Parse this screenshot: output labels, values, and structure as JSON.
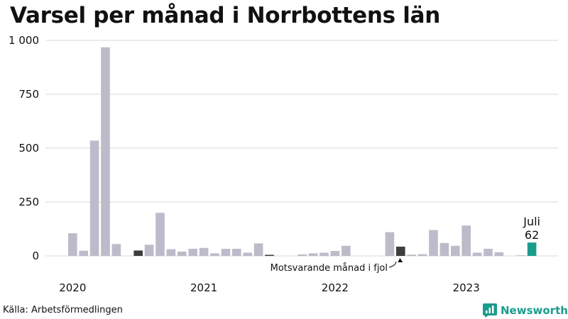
{
  "title": "Varsel per månad i Norrbottens län",
  "source": "Källa: Arbetsförmedlingen",
  "brand": {
    "name": "Newsworthy",
    "icon": "newsworthy-logo-icon"
  },
  "colors": {
    "bar": "#bdbbc9",
    "same_month": "#3d3d3d",
    "current": "#1a9c8c",
    "grid": "#d9d9d9",
    "brand": "#1a9c8c"
  },
  "chart_data": {
    "type": "bar",
    "title": "Varsel per månad i Norrbottens län",
    "xlabel": "",
    "ylabel": "",
    "ylim": [
      0,
      1000
    ],
    "grid": true,
    "yticks": [
      {
        "value": 0,
        "label": "0"
      },
      {
        "value": 250,
        "label": "250"
      },
      {
        "value": 500,
        "label": "500"
      },
      {
        "value": 750,
        "label": "750"
      },
      {
        "value": 1000,
        "label": "1 000"
      }
    ],
    "year_labels": [
      {
        "label": "2020",
        "index": 0
      },
      {
        "label": "2021",
        "index": 12
      },
      {
        "label": "2022",
        "index": 24
      },
      {
        "label": "2023",
        "index": 36
      }
    ],
    "categories": [
      "2020-01",
      "2020-02",
      "2020-03",
      "2020-04",
      "2020-05",
      "2020-06",
      "2020-07",
      "2020-08",
      "2020-09",
      "2020-10",
      "2020-11",
      "2020-12",
      "2021-01",
      "2021-02",
      "2021-03",
      "2021-04",
      "2021-05",
      "2021-06",
      "2021-07",
      "2021-08",
      "2021-09",
      "2021-10",
      "2021-11",
      "2021-12",
      "2022-01",
      "2022-02",
      "2022-03",
      "2022-04",
      "2022-05",
      "2022-06",
      "2022-07",
      "2022-08",
      "2022-09",
      "2022-10",
      "2022-11",
      "2022-12",
      "2023-01",
      "2023-02",
      "2023-03",
      "2023-04",
      "2023-05",
      "2023-06",
      "2023-07"
    ],
    "values": [
      105,
      24,
      535,
      968,
      55,
      0,
      25,
      52,
      200,
      31,
      20,
      33,
      37,
      12,
      33,
      33,
      15,
      58,
      5,
      0,
      0,
      7,
      12,
      15,
      23,
      47,
      0,
      0,
      0,
      110,
      43,
      6,
      8,
      120,
      60,
      47,
      141,
      15,
      33,
      17,
      0,
      3,
      62
    ],
    "highlight_same_month": [
      6,
      18,
      30
    ],
    "current_index": 42,
    "current_label": {
      "month": "Juli",
      "value": "62"
    },
    "annotation": {
      "text": "Motsvarande månad i fjol",
      "index": 30
    }
  }
}
